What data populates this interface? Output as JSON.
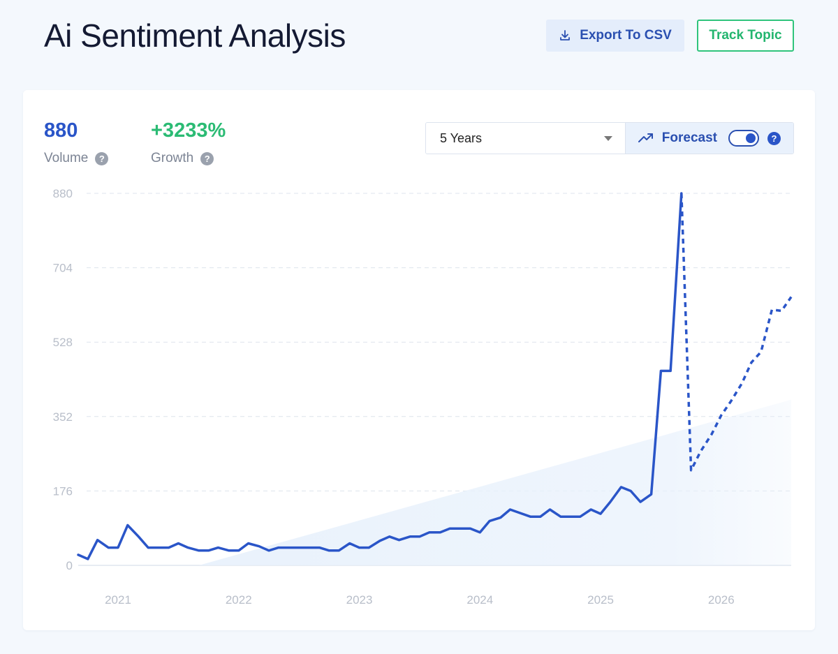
{
  "header": {
    "title": "Ai Sentiment Analysis",
    "export_label": "Export To CSV",
    "track_label": "Track Topic"
  },
  "stats": {
    "volume_value": "880",
    "volume_label": "Volume",
    "growth_value": "+3233%",
    "growth_label": "Growth"
  },
  "controls": {
    "range_value": "5 Years",
    "forecast_label": "Forecast",
    "forecast_enabled": true
  },
  "colors": {
    "line": "#2a55c8",
    "growth": "#2bbb74",
    "trend_fill": "#e8f1fc"
  },
  "chart_data": {
    "type": "line",
    "ylim": [
      0,
      880
    ],
    "yticks": [
      880,
      704,
      528,
      352,
      176,
      0
    ],
    "xticks": [
      {
        "label": "2021",
        "x": 2021.0
      },
      {
        "label": "2022",
        "x": 2022.0
      },
      {
        "label": "2023",
        "x": 2023.0
      },
      {
        "label": "2024",
        "x": 2024.0
      },
      {
        "label": "2025",
        "x": 2025.0
      },
      {
        "label": "2026",
        "x": 2026.0
      }
    ],
    "xlim": [
      2020.67,
      2026.58
    ],
    "grid": true,
    "series": [
      {
        "kind": "actual",
        "points": [
          [
            2020.67,
            25
          ],
          [
            2020.75,
            15
          ],
          [
            2020.83,
            60
          ],
          [
            2020.92,
            42
          ],
          [
            2021.0,
            42
          ],
          [
            2021.08,
            95
          ],
          [
            2021.17,
            68
          ],
          [
            2021.25,
            42
          ],
          [
            2021.33,
            42
          ],
          [
            2021.42,
            42
          ],
          [
            2021.5,
            52
          ],
          [
            2021.58,
            42
          ],
          [
            2021.67,
            35
          ],
          [
            2021.75,
            35
          ],
          [
            2021.83,
            42
          ],
          [
            2021.92,
            35
          ],
          [
            2022.0,
            35
          ],
          [
            2022.08,
            52
          ],
          [
            2022.17,
            45
          ],
          [
            2022.25,
            35
          ],
          [
            2022.33,
            42
          ],
          [
            2022.42,
            42
          ],
          [
            2022.5,
            42
          ],
          [
            2022.58,
            42
          ],
          [
            2022.67,
            42
          ],
          [
            2022.75,
            35
          ],
          [
            2022.83,
            35
          ],
          [
            2022.92,
            52
          ],
          [
            2023.0,
            42
          ],
          [
            2023.08,
            42
          ],
          [
            2023.17,
            58
          ],
          [
            2023.25,
            68
          ],
          [
            2023.33,
            60
          ],
          [
            2023.42,
            68
          ],
          [
            2023.5,
            68
          ],
          [
            2023.58,
            78
          ],
          [
            2023.67,
            78
          ],
          [
            2023.75,
            87
          ],
          [
            2023.83,
            87
          ],
          [
            2023.92,
            87
          ],
          [
            2024.0,
            78
          ],
          [
            2024.08,
            105
          ],
          [
            2024.17,
            113
          ],
          [
            2024.25,
            132
          ],
          [
            2024.33,
            124
          ],
          [
            2024.42,
            115
          ],
          [
            2024.5,
            115
          ],
          [
            2024.58,
            132
          ],
          [
            2024.67,
            115
          ],
          [
            2024.75,
            115
          ],
          [
            2024.83,
            115
          ],
          [
            2024.92,
            132
          ],
          [
            2025.0,
            122
          ],
          [
            2025.08,
            150
          ],
          [
            2025.17,
            185
          ],
          [
            2025.25,
            176
          ],
          [
            2025.33,
            150
          ],
          [
            2025.42,
            168
          ],
          [
            2025.5,
            460
          ],
          [
            2025.58,
            460
          ],
          [
            2025.67,
            880
          ]
        ]
      },
      {
        "kind": "forecast",
        "points": [
          [
            2025.67,
            880
          ],
          [
            2025.75,
            225
          ],
          [
            2025.83,
            270
          ],
          [
            2025.92,
            310
          ],
          [
            2026.0,
            355
          ],
          [
            2026.08,
            388
          ],
          [
            2026.17,
            430
          ],
          [
            2026.25,
            480
          ],
          [
            2026.33,
            505
          ],
          [
            2026.42,
            605
          ],
          [
            2026.5,
            602
          ],
          [
            2026.58,
            635
          ]
        ]
      },
      {
        "kind": "trend",
        "points": [
          [
            2021.67,
            0
          ],
          [
            2026.58,
            392
          ]
        ]
      }
    ]
  }
}
